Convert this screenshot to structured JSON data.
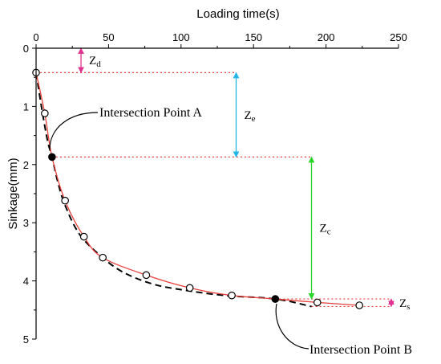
{
  "chart_data": {
    "type": "line",
    "title": "",
    "xlabel": "Loading time(s)",
    "ylabel": "Sinkage(mm)",
    "xlim": [
      0,
      250
    ],
    "ylim": [
      0,
      5
    ],
    "y_inverted": true,
    "x_axis_position": "top",
    "grid": false,
    "x_ticks": [
      0,
      50,
      100,
      150,
      200,
      250
    ],
    "y_ticks": [
      0,
      1,
      2,
      3,
      4,
      5
    ],
    "series": [
      {
        "style": "red-solid-with-open-circles",
        "color": "#e8413c",
        "x": [
          0,
          6,
          11,
          20,
          33,
          46,
          76,
          106,
          135,
          165,
          194,
          223
        ],
        "y": [
          0.42,
          1.12,
          1.87,
          2.62,
          3.24,
          3.6,
          3.9,
          4.12,
          4.25,
          4.31,
          4.37,
          4.42
        ]
      },
      {
        "style": "black-dashed",
        "color": "#000000",
        "x": [
          0,
          4,
          8,
          11,
          15,
          20,
          30,
          45,
          60,
          80,
          100,
          130,
          165,
          190
        ],
        "y": [
          0.42,
          1.05,
          1.6,
          1.87,
          2.3,
          2.7,
          3.2,
          3.58,
          3.85,
          4.05,
          4.15,
          4.25,
          4.31,
          4.44
        ]
      }
    ],
    "intersection_points": [
      {
        "label": "Intersection Point A",
        "x": 11,
        "y": 1.87
      },
      {
        "label": "Intersection Point B",
        "x": 165,
        "y": 4.31
      }
    ],
    "dimensions": [
      {
        "label": "Z",
        "sub": "d",
        "x": 31,
        "y1": 0,
        "y2": 0.42,
        "color": "#e0338f"
      },
      {
        "label": "Z",
        "sub": "e",
        "x": 138,
        "y1": 0.42,
        "y2": 1.87,
        "color": "#22b5e8"
      },
      {
        "label": "Z",
        "sub": "c",
        "x": 190,
        "y1": 1.87,
        "y2": 4.31,
        "color": "#2bd62b"
      },
      {
        "label": "Z",
        "sub": "s",
        "x": 245,
        "y1": 4.31,
        "y2": 4.44,
        "color": "#e0338f"
      }
    ],
    "reference_lines": [
      {
        "y": 0.42,
        "x_from": 0,
        "x_to": 138
      },
      {
        "y": 1.87,
        "x_from": 11,
        "x_to": 190
      },
      {
        "y": 4.31,
        "x_from": 165,
        "x_to": 245
      },
      {
        "y": 4.44,
        "x_from": 190,
        "x_to": 245
      }
    ],
    "reference_line_color": "#e8413c"
  }
}
